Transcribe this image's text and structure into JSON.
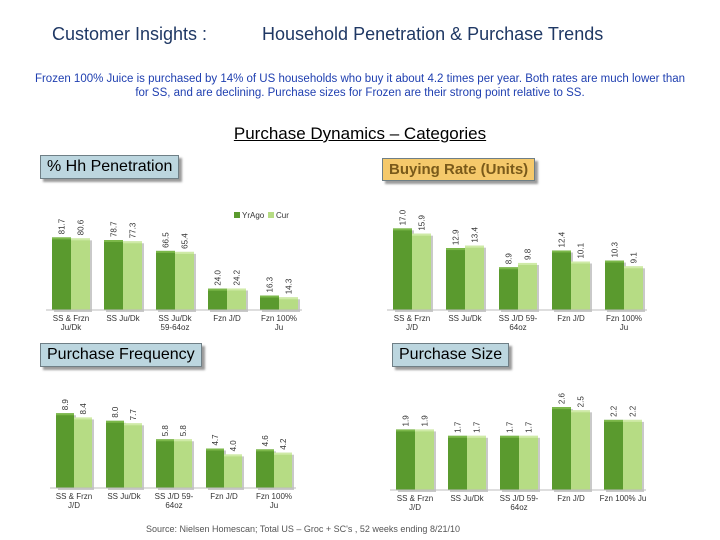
{
  "header": {
    "title_left": "Customer Insights :",
    "title_right": "Household Penetration & Purchase Trends"
  },
  "summary": "Frozen 100% Juice is purchased by 14% of US households who buy it about 4.2 times per year.  Both rates are much lower than for SS, and are declining.  Purchase sizes for Frozen are their strong point relative to SS.",
  "subheader": "Purchase Dynamics – Categories",
  "source": "Source: Nielsen Homescan;  Total US – Groc + SC's ,  52 weeks ending  8/21/10",
  "colors": {
    "yrago": "#5a9a2e",
    "cur": "#b6dc84"
  },
  "chart_data": [
    {
      "type": "bar",
      "title": "% Hh Penetration",
      "categories": [
        [
          "SS & Frzn",
          "Ju/Dk"
        ],
        [
          "SS Ju/Dk"
        ],
        [
          "SS Ju/Dk",
          "59-64oz"
        ],
        [
          "Fzn J/D"
        ],
        [
          "Fzn 100%",
          "Ju"
        ]
      ],
      "series": [
        {
          "name": "YrAgo",
          "values": [
            81.7,
            78.7,
            66.5,
            24.0,
            16.3
          ]
        },
        {
          "name": "Cur",
          "values": [
            80.6,
            77.3,
            65.4,
            24.2,
            14.3
          ]
        }
      ],
      "value_labels": [
        [
          "81.7",
          "78.7",
          "66.5",
          "24.0",
          "16.3"
        ],
        [
          "80.6",
          "77.3",
          "65.4",
          "24.2",
          "14.3"
        ]
      ],
      "ylim": [
        0,
        90
      ],
      "legend": "top-right"
    },
    {
      "type": "bar",
      "title": "Buying Rate (Units)",
      "categories": [
        [
          "SS & Frzn",
          "J/D"
        ],
        [
          "SS Ju/Dk"
        ],
        [
          "SS J/D 59-",
          "64oz"
        ],
        [
          "Fzn J/D"
        ],
        [
          "Fzn 100%",
          "Ju"
        ]
      ],
      "series": [
        {
          "values": [
            17.0,
            12.9,
            8.9,
            12.4,
            10.3
          ]
        },
        {
          "values": [
            15.9,
            13.4,
            9.8,
            10.1,
            9.1
          ]
        }
      ],
      "value_labels": [
        [
          "17.0",
          "12.9",
          "8.9",
          "12.4",
          "10.3"
        ],
        [
          "15.9",
          "13.4",
          "9.8",
          "10.1",
          "9.1"
        ]
      ],
      "ylim": [
        0,
        20
      ]
    },
    {
      "type": "bar",
      "title": "Purchase Frequency",
      "categories": [
        [
          "SS & Frzn",
          "J/D"
        ],
        [
          "SS Ju/Dk"
        ],
        [
          "SS J/D 59-",
          "64oz"
        ],
        [
          "Fzn J/D"
        ],
        [
          "Fzn 100%",
          "Ju"
        ]
      ],
      "series": [
        {
          "values": [
            8.9,
            8.0,
            5.8,
            4.7,
            4.6
          ]
        },
        {
          "values": [
            8.4,
            7.7,
            5.8,
            4.0,
            4.2
          ]
        }
      ],
      "value_labels": [
        [
          "8.9",
          "8.0",
          "5.8",
          "4.7",
          "4.6"
        ],
        [
          "8.4",
          "7.7",
          "5.8",
          "4.0",
          "4.2"
        ]
      ],
      "ylim": [
        0,
        10
      ]
    },
    {
      "type": "bar",
      "title": "Purchase Size",
      "categories": [
        [
          "SS & Frzn",
          "J/D"
        ],
        [
          "SS Ju/Dk"
        ],
        [
          "SS J/D 59-",
          "64oz"
        ],
        [
          "Fzn J/D"
        ],
        [
          "Fzn 100% Ju"
        ]
      ],
      "series": [
        {
          "values": [
            1.9,
            1.7,
            1.7,
            2.6,
            2.2
          ]
        },
        {
          "values": [
            1.9,
            1.7,
            1.7,
            2.5,
            2.2
          ]
        }
      ],
      "value_labels": [
        [
          "1.9",
          "1.7",
          "1.7",
          "2.6",
          "2.2"
        ],
        [
          "1.9",
          "1.7",
          "1.7",
          "2.5",
          "2.2"
        ]
      ],
      "ylim": [
        0,
        3.2
      ]
    }
  ]
}
